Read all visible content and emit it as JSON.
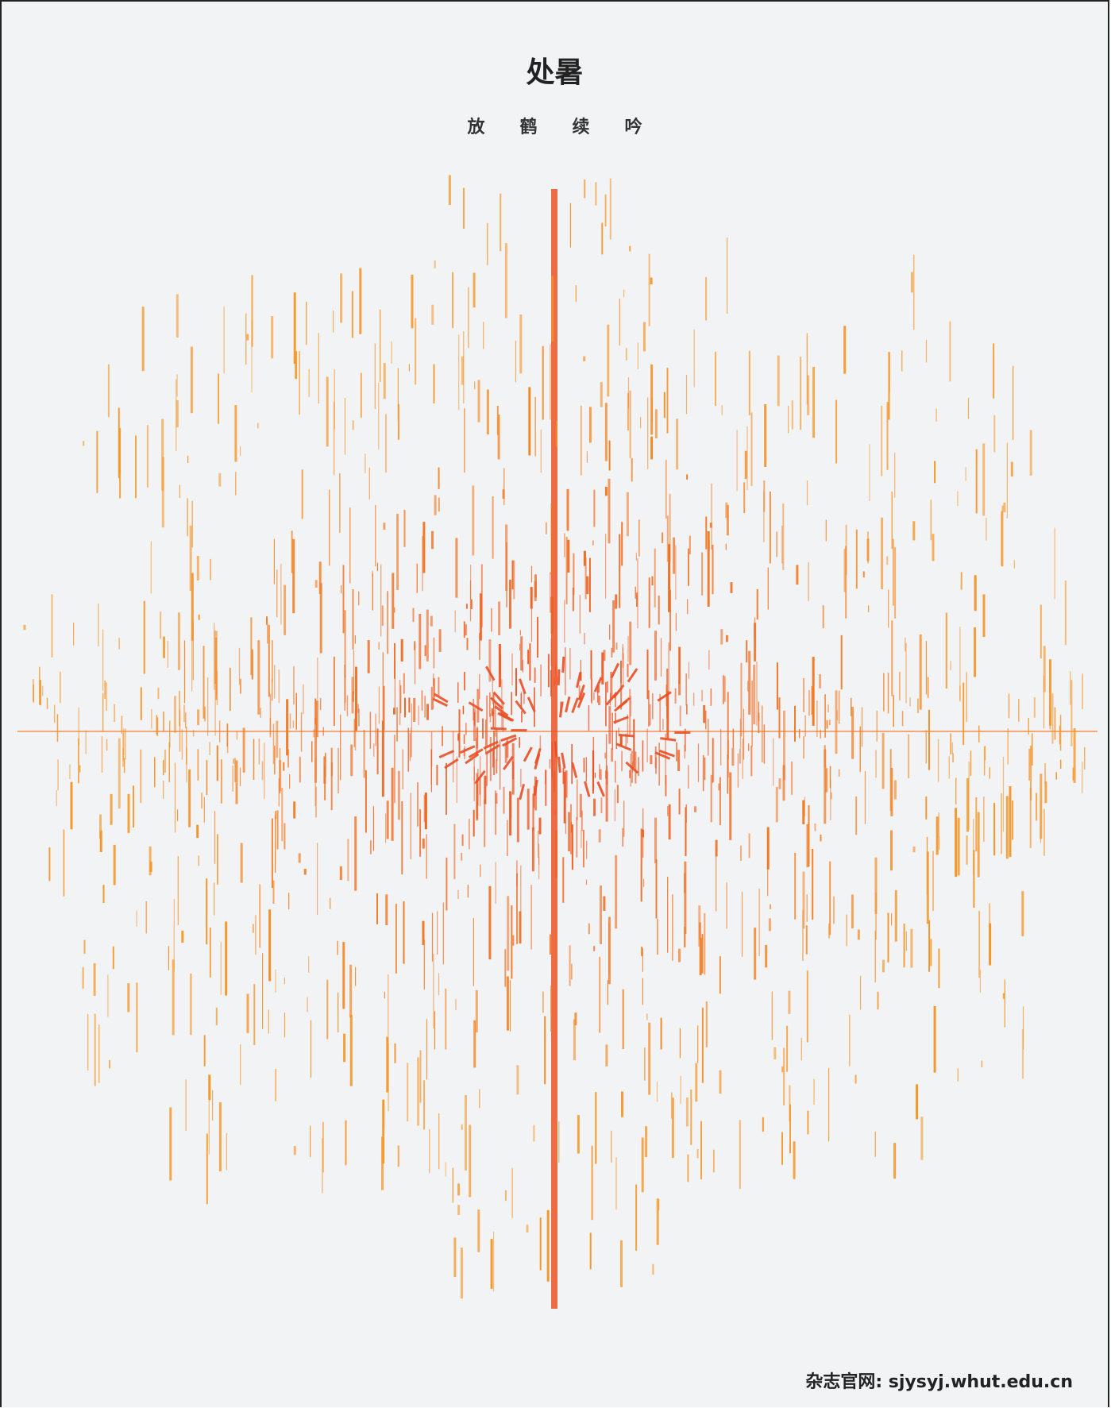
{
  "header": {
    "title": "处暑",
    "subtitle": "放鹤续吟"
  },
  "footer": {
    "text": "杂志官网: sjysyj.whut.edu.cn"
  }
}
